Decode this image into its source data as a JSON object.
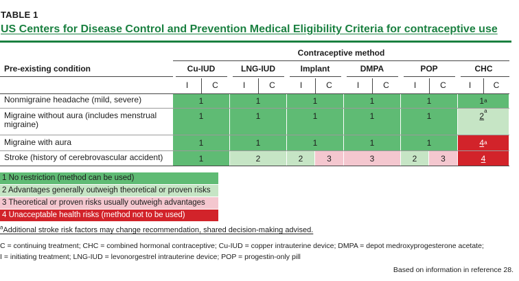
{
  "table_label": "TABLE 1",
  "title": "US Centers for Disease Control and Prevention Medical Eligibility Criteria for contraceptive use",
  "column_group_header": "Contraceptive method",
  "row_header": "Pre-existing condition",
  "methods": [
    "Cu-IUD",
    "LNG-IUD",
    "Implant",
    "DMPA",
    "POP",
    "CHC"
  ],
  "sub_columns": [
    "I",
    "C"
  ],
  "rows": [
    {
      "condition": "Nonmigraine headache (mild, severe)"
    },
    {
      "condition": "Migraine without aura (includes menstrual migraine)"
    },
    {
      "condition": "Migraine with aura"
    },
    {
      "condition": "Stroke (history of cerebrovascular accident)"
    }
  ],
  "cells": {
    "r0": [
      "1",
      "1",
      "1",
      "1",
      "1",
      "1"
    ],
    "r1": [
      "1",
      "1",
      "1",
      "1",
      "1",
      "2"
    ],
    "r2": [
      "1",
      "1",
      "1",
      "1",
      "1",
      "4"
    ],
    "r3": [
      "1",
      "2",
      "2",
      "3",
      "3",
      "2",
      "3",
      "4"
    ]
  },
  "footnote_marker": "a",
  "legend": [
    {
      "label": "1 No restriction (method can be used)",
      "color": "#5fbb74"
    },
    {
      "label": "2 Advantages generally outweigh theoretical or proven risks",
      "color": "#c6e5c5"
    },
    {
      "label": "3 Theoretical or proven risks usually outweigh advantages",
      "color": "#f4c7cf"
    },
    {
      "label": "4 Unacceptable health risks (method not to be used)",
      "color": "#d2232a"
    }
  ],
  "footnote": "Additional stroke risk factors may change recommendation, shared decision-making advised.",
  "abbreviations_line1": "C = continuing treatment; CHC = combined hormonal contraceptive; Cu-IUD = copper intrauterine device; DMPA = depot medroxyprogesterone acetate;",
  "abbreviations_line2": "I = initiating treatment; LNG-IUD = levonorgestrel intrauterine device; POP = progestin-only pill",
  "source": "Based on information in reference 28."
}
